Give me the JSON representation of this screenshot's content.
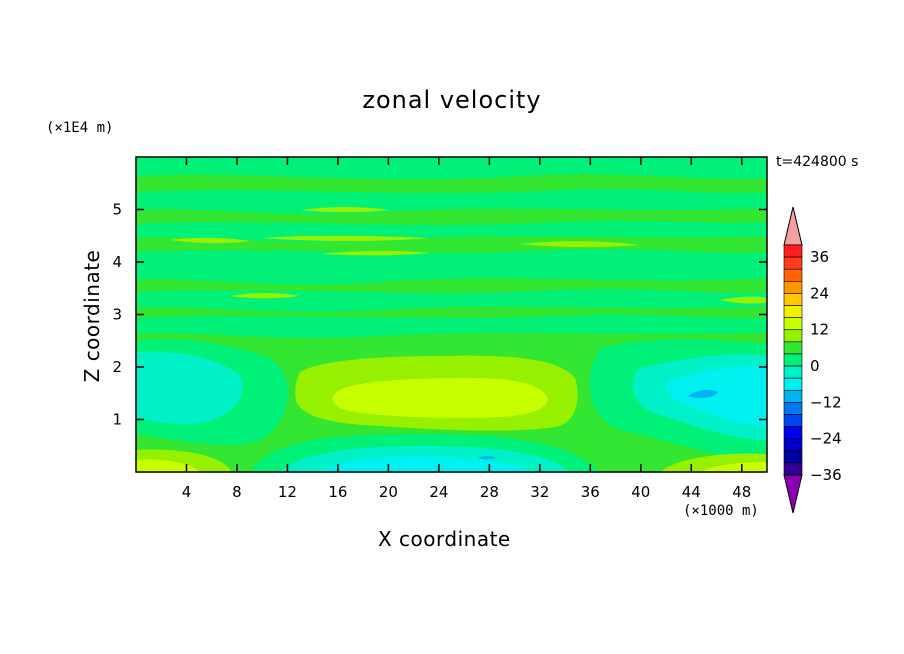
{
  "chart_data": {
    "type": "heatmap",
    "title": "zonal velocity",
    "xlabel": "X coordinate",
    "ylabel": "Z coordinate",
    "x_unit_label": "(×1000 m)",
    "y_unit_label": "(×1E4 m)",
    "time_label": "t=424800 s",
    "xlim": [
      0,
      50
    ],
    "ylim": [
      0,
      6
    ],
    "x_ticks": [
      "4",
      "8",
      "12",
      "16",
      "20",
      "24",
      "28",
      "32",
      "36",
      "40",
      "44",
      "48"
    ],
    "y_ticks": [
      "1",
      "2",
      "3",
      "4",
      "5"
    ],
    "colorbar": {
      "tick_labels": [
        "36",
        "24",
        "12",
        "0",
        "−12",
        "−24",
        "−36"
      ],
      "levels_top_to_bottom": [
        "#ff1e1e",
        "#ff3c1e",
        "#ff6400",
        "#ff9600",
        "#ffc800",
        "#f0f000",
        "#c8ff00",
        "#96f000",
        "#32e632",
        "#00f078",
        "#00f0c8",
        "#00f0f0",
        "#00b4f0",
        "#0078f0",
        "#0046f0",
        "#0000f0",
        "#0000c8",
        "#0000a0",
        "#320096"
      ],
      "over_color": "#f5a0a0",
      "under_color": "#8c00b4"
    },
    "field_colors": {
      "base": "#32e632",
      "weak_positive": "#96f000",
      "positive": "#c8ff00",
      "weak_negative": "#00f078",
      "negative": "#00f0c8",
      "strong_negative": "#00f0f0",
      "jet_negative": "#00b4f0"
    }
  }
}
